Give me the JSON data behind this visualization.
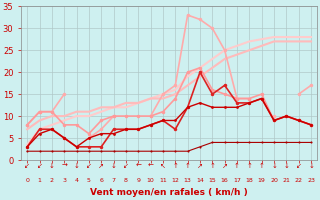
{
  "background_color": "#cef0f0",
  "grid_color": "#b0c8c8",
  "xlabel": "Vent moyen/en rafales ( km/h )",
  "xlabel_color": "#cc0000",
  "ylabel_color": "#cc0000",
  "tick_color": "#cc0000",
  "xlim": [
    -0.5,
    23.5
  ],
  "ylim": [
    0,
    35
  ],
  "yticks": [
    0,
    5,
    10,
    15,
    20,
    25,
    30,
    35
  ],
  "xticks": [
    0,
    1,
    2,
    3,
    4,
    5,
    6,
    7,
    8,
    9,
    10,
    11,
    12,
    13,
    14,
    15,
    16,
    17,
    18,
    19,
    20,
    21,
    22,
    23
  ],
  "xtick_arrows": [
    "↙",
    "↙",
    "↓",
    "→",
    "↓",
    "↙",
    "↗",
    "↓",
    "↙",
    "←",
    "←",
    "↖",
    "↑",
    "↑",
    "↗",
    "↑",
    "↗",
    "↑",
    "↑",
    "↑",
    "↓",
    "↓",
    "↙",
    "↓"
  ],
  "series": [
    {
      "x": [
        0,
        1,
        2,
        3,
        4,
        5,
        6,
        7,
        8,
        9,
        10,
        11,
        12,
        13,
        14,
        15,
        16,
        17,
        18,
        19,
        20,
        21,
        22,
        23
      ],
      "y": [
        8,
        11,
        11,
        15,
        null,
        5,
        7,
        10,
        null,
        null,
        10,
        15,
        17,
        33,
        32,
        30,
        25,
        14,
        14,
        null,
        10,
        null,
        15,
        17
      ],
      "color": "#ffaaaa",
      "linewidth": 1.2,
      "markersize": 2.5,
      "marker": true
    },
    {
      "x": [
        0,
        1,
        2,
        3,
        4,
        5,
        6,
        7,
        8,
        9,
        10,
        11,
        12,
        13,
        14,
        15,
        16,
        17,
        18,
        19,
        20,
        21,
        22,
        23
      ],
      "y": [
        3.5,
        7,
        8,
        9,
        10,
        10,
        11,
        12,
        12,
        13,
        14,
        15,
        16,
        19,
        21,
        23,
        25,
        26,
        27,
        27.5,
        28,
        28,
        28,
        28
      ],
      "color": "#ffcccc",
      "linewidth": 1.5,
      "markersize": 0,
      "marker": false
    },
    {
      "x": [
        0,
        1,
        2,
        3,
        4,
        5,
        6,
        7,
        8,
        9,
        10,
        11,
        12,
        13,
        14,
        15,
        16,
        17,
        18,
        19,
        20,
        21,
        22,
        23
      ],
      "y": [
        7,
        9,
        10,
        10,
        11,
        11,
        12,
        12,
        13,
        13,
        14,
        14,
        15,
        17,
        19,
        21,
        23,
        24,
        25,
        26,
        27,
        27,
        27,
        27
      ],
      "color": "#ffbbbb",
      "linewidth": 1.5,
      "markersize": 0,
      "marker": false
    },
    {
      "x": [
        0,
        1,
        2,
        3,
        4,
        5,
        6,
        7,
        8,
        9,
        10,
        11,
        12,
        13,
        14,
        15,
        16,
        17,
        18,
        19,
        20,
        21,
        22,
        23
      ],
      "y": [
        8,
        11,
        11,
        8,
        8,
        6,
        9,
        10,
        10,
        10,
        10,
        11,
        14,
        20,
        21,
        16,
        15,
        14,
        14,
        15,
        9,
        10,
        9,
        8
      ],
      "color": "#ff9999",
      "linewidth": 1.2,
      "markersize": 2.5,
      "marker": true
    },
    {
      "x": [
        0,
        1,
        2,
        3,
        4,
        5,
        6,
        7,
        8,
        9,
        10,
        11,
        12,
        13,
        14,
        15,
        16,
        17,
        18,
        19,
        20,
        21,
        22,
        23
      ],
      "y": [
        3,
        7,
        7,
        5,
        3,
        3,
        3,
        7,
        7,
        7,
        8,
        9,
        7,
        12,
        20,
        15,
        17,
        13,
        13,
        14,
        9,
        10,
        9,
        8
      ],
      "color": "#dd2222",
      "linewidth": 1.2,
      "markersize": 2.5,
      "marker": true
    },
    {
      "x": [
        0,
        1,
        2,
        3,
        4,
        5,
        6,
        7,
        8,
        9,
        10,
        11,
        12,
        13,
        14,
        15,
        16,
        17,
        18,
        19,
        20,
        21,
        22,
        23
      ],
      "y": [
        3,
        6,
        7,
        5,
        3,
        5,
        6,
        6,
        7,
        7,
        8,
        9,
        9,
        12,
        13,
        12,
        12,
        12,
        13,
        14,
        9,
        10,
        9,
        8
      ],
      "color": "#cc0000",
      "linewidth": 1.0,
      "markersize": 2.0,
      "marker": true
    },
    {
      "x": [
        0,
        1,
        2,
        3,
        4,
        5,
        6,
        7,
        8,
        9,
        10,
        11,
        12,
        13,
        14,
        15,
        16,
        17,
        18,
        19,
        20,
        21,
        22,
        23
      ],
      "y": [
        2,
        2,
        2,
        2,
        2,
        2,
        2,
        2,
        2,
        2,
        2,
        2,
        2,
        2,
        3,
        4,
        4,
        4,
        4,
        4,
        4,
        4,
        4,
        4
      ],
      "color": "#aa0000",
      "linewidth": 0.8,
      "markersize": 1.5,
      "marker": true
    }
  ]
}
